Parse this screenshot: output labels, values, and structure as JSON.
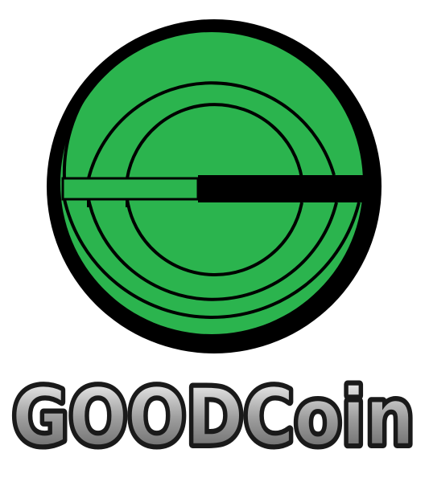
{
  "brand": {
    "name": "GOODCoin",
    "colors": {
      "green": "#2BB44E",
      "black": "#000000",
      "white": "#FFFFFF",
      "text_fill": "#1A1A1A",
      "text_inner": "#BDBDBD"
    }
  },
  "logo": {
    "icon": "goodcoin-g-coin-icon"
  }
}
